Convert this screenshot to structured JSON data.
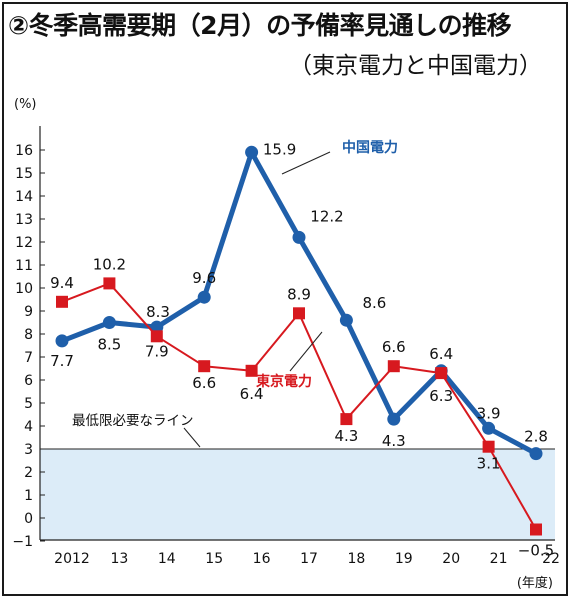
{
  "title": "②冬季高需要期（2月）の予備率見通しの推移",
  "subtitle": "（東京電力と中国電力）",
  "chart_data": {
    "type": "line",
    "title": "②冬季高需要期（2月）の予備率見通しの推移",
    "subtitle": "（東京電力と中国電力）",
    "ylabel": "(%)",
    "xlabel": "(年度)",
    "x_tick_labels": [
      "2012",
      "13",
      "14",
      "15",
      "16",
      "17",
      "18",
      "19",
      "20",
      "21",
      "22"
    ],
    "y_ticks": [
      -1,
      0,
      1,
      2,
      3,
      4,
      5,
      6,
      7,
      8,
      9,
      10,
      11,
      12,
      13,
      14,
      15,
      16
    ],
    "ylim": [
      -2,
      16.5
    ],
    "grid": false,
    "series": [
      {
        "name": "中国電力",
        "color": "#1f5faa",
        "marker": "circle",
        "values": [
          7.7,
          8.5,
          8.3,
          9.6,
          15.9,
          12.2,
          8.6,
          4.3,
          6.4,
          3.9,
          2.8
        ],
        "labels": [
          "7.7",
          "8.5",
          "",
          "9.6",
          "15.9",
          "12.2",
          "8.6",
          "4.3",
          "6.4",
          "3.9",
          "2.8"
        ]
      },
      {
        "name": "東京電力",
        "color": "#d7191f",
        "marker": "square",
        "values": [
          9.4,
          10.2,
          7.9,
          6.6,
          6.4,
          8.9,
          4.3,
          6.6,
          6.3,
          3.1,
          -0.5
        ],
        "labels": [
          "9.4",
          "10.2",
          "7.9",
          "6.6",
          "6.4",
          "8.9",
          "4.3",
          "6.6",
          "6.3",
          "3.1",
          "−0.5"
        ]
      }
    ],
    "extra_label": "8.3",
    "reference_line": {
      "value": 3,
      "label": "最低限必要なライン",
      "fill": "#dcecf8"
    }
  }
}
